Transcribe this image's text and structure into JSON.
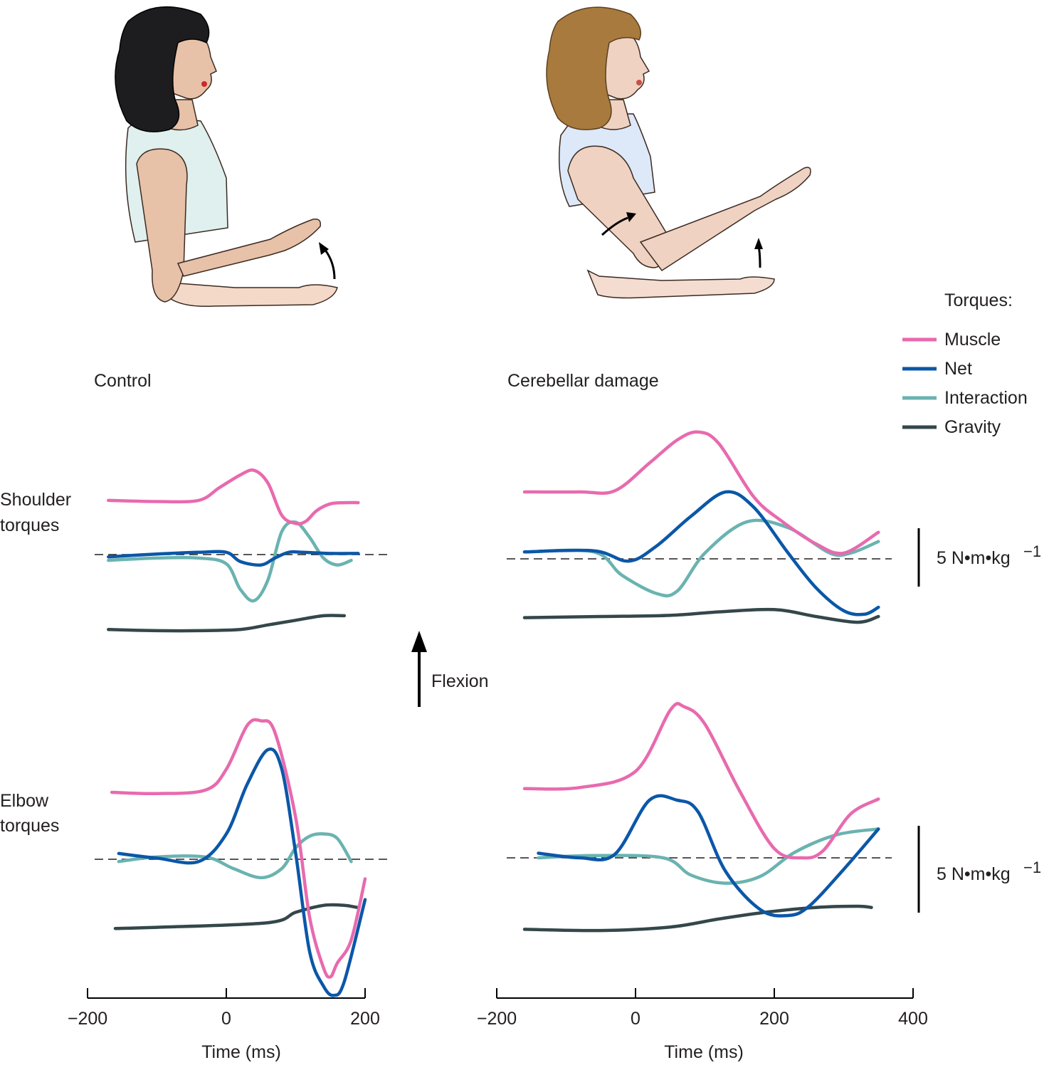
{
  "legend": {
    "title": "Torques:",
    "items": [
      {
        "label": "Muscle",
        "color": "#e86aae"
      },
      {
        "label": "Net",
        "color": "#0b57a8"
      },
      {
        "label": "Interaction",
        "color": "#6ab3b0"
      },
      {
        "label": "Gravity",
        "color": "#34474a"
      }
    ]
  },
  "panels": {
    "control_title": "Control",
    "cerebellar_title": "Cerebellar damage",
    "shoulder_row_label": [
      "Shoulder",
      "torques"
    ],
    "elbow_row_label": [
      "Elbow",
      "torques"
    ],
    "flexion_label": "Flexion",
    "scale_bar_label": "5 N•m•kg",
    "scale_bar_exponent": "−1"
  },
  "illustrations": {
    "control_person": {
      "hair": "black",
      "shirt": "pale-teal",
      "motion": "elbow-flexion"
    },
    "cerebellar_person": {
      "hair": "brown",
      "shirt": "pale-blue",
      "motion": "shoulder-and-elbow-flexion"
    }
  },
  "chart_data": [
    {
      "type": "line",
      "title": "Control",
      "row": "Shoulder torques",
      "xlabel": "Time (ms)",
      "xlim": [
        -200,
        200
      ],
      "scale": "5 N•m•kg −1",
      "series": [
        {
          "name": "Muscle",
          "x": [
            -170,
            -100,
            -40,
            -10,
            20,
            40,
            60,
            80,
            100,
            115,
            130,
            150,
            170,
            190
          ],
          "y": [
            4.7,
            4.6,
            4.7,
            5.8,
            6.9,
            7.3,
            6.2,
            3.4,
            2.7,
            2.9,
            3.8,
            4.4,
            4.5,
            4.5
          ]
        },
        {
          "name": "Net",
          "x": [
            -170,
            -100,
            -40,
            0,
            20,
            50,
            70,
            90,
            110,
            150,
            190
          ],
          "y": [
            -0.2,
            0.05,
            0.2,
            0.2,
            -0.6,
            -0.9,
            -0.3,
            0.2,
            0.2,
            0.1,
            0.1
          ]
        },
        {
          "name": "Interaction",
          "x": [
            -170,
            -100,
            -40,
            0,
            20,
            40,
            60,
            80,
            100,
            120,
            140,
            160,
            180
          ],
          "y": [
            -0.5,
            -0.3,
            -0.3,
            -0.8,
            -3.0,
            -4.0,
            -2.2,
            2.0,
            2.8,
            1.5,
            -0.3,
            -0.9,
            -0.5
          ]
        },
        {
          "name": "Gravity",
          "x": [
            -170,
            -100,
            -40,
            20,
            60,
            100,
            140,
            170
          ],
          "y": [
            -6.5,
            -6.6,
            -6.6,
            -6.5,
            -6.1,
            -5.7,
            -5.3,
            -5.3
          ]
        }
      ]
    },
    {
      "type": "line",
      "title": "Cerebellar damage",
      "row": "Shoulder torques",
      "xlabel": "Time (ms)",
      "xlim": [
        -200,
        400
      ],
      "scale": "5 N•m•kg −1",
      "series": [
        {
          "name": "Muscle",
          "x": [
            -160,
            -80,
            -30,
            20,
            60,
            90,
            120,
            170,
            210,
            260,
            300,
            350
          ],
          "y": [
            5.8,
            5.8,
            5.9,
            8.3,
            10.3,
            11.0,
            10.0,
            5.4,
            3.3,
            1.3,
            0.5,
            2.3
          ]
        },
        {
          "name": "Net",
          "x": [
            -160,
            -60,
            -10,
            30,
            80,
            130,
            170,
            220,
            260,
            300,
            330,
            350
          ],
          "y": [
            0.6,
            0.7,
            -0.2,
            1.1,
            3.7,
            5.8,
            4.5,
            0.5,
            -2.5,
            -4.5,
            -4.8,
            -4.2
          ]
        },
        {
          "name": "Interaction",
          "x": [
            -160,
            -60,
            -20,
            30,
            60,
            100,
            160,
            220,
            280,
            310,
            350
          ],
          "y": [
            0.6,
            0.6,
            -1.4,
            -3.0,
            -2.8,
            0.5,
            3.2,
            2.7,
            0.5,
            0.5,
            1.5
          ]
        },
        {
          "name": "Gravity",
          "x": [
            -160,
            -50,
            50,
            120,
            200,
            260,
            320,
            350
          ],
          "y": [
            -5.1,
            -5.0,
            -4.9,
            -4.6,
            -4.4,
            -5.0,
            -5.5,
            -5.0
          ]
        }
      ]
    },
    {
      "type": "line",
      "title": "Control",
      "row": "Elbow torques",
      "xlabel": "Time (ms)",
      "xlim": [
        -200,
        200
      ],
      "x_ticks": [
        -200,
        0,
        200
      ],
      "scale": "5 N•m•kg −1",
      "series": [
        {
          "name": "Muscle",
          "x": [
            -165,
            -100,
            -30,
            0,
            30,
            50,
            70,
            100,
            120,
            140,
            150,
            160,
            180,
            200
          ],
          "y": [
            5.8,
            5.7,
            6.0,
            7.8,
            11.6,
            12.0,
            11.0,
            3.6,
            -5.0,
            -9.4,
            -10.2,
            -9.0,
            -7.0,
            -1.7
          ]
        },
        {
          "name": "Net",
          "x": [
            -155,
            -100,
            -40,
            0,
            30,
            60,
            80,
            100,
            120,
            140,
            155,
            170,
            200
          ],
          "y": [
            0.5,
            0.1,
            -0.2,
            2.2,
            6.5,
            9.5,
            7.8,
            0.5,
            -8.0,
            -11.0,
            -11.8,
            -10.6,
            -3.5
          ]
        },
        {
          "name": "Interaction",
          "x": [
            -155,
            -100,
            -30,
            10,
            50,
            80,
            100,
            120,
            140,
            160,
            180
          ],
          "y": [
            -0.2,
            0.2,
            0.2,
            -0.8,
            -1.6,
            -0.8,
            1.0,
            2.0,
            2.2,
            1.8,
            -0.2
          ]
        },
        {
          "name": "Gravity",
          "x": [
            -160,
            -100,
            60,
            100,
            140,
            170,
            190
          ],
          "y": [
            -6.0,
            -5.9,
            -5.5,
            -4.6,
            -4.0,
            -4.0,
            -4.2
          ]
        }
      ]
    },
    {
      "type": "line",
      "title": "Cerebellar damage",
      "row": "Elbow torques",
      "xlabel": "Time (ms)",
      "xlim": [
        -200,
        400
      ],
      "x_ticks": [
        -200,
        0,
        200,
        400
      ],
      "scale": "5 N•m•kg −1",
      "series": [
        {
          "name": "Muscle",
          "x": [
            -160,
            -80,
            0,
            50,
            70,
            100,
            150,
            200,
            240,
            270,
            310,
            350
          ],
          "y": [
            6.0,
            6.1,
            7.5,
            12.8,
            13.1,
            11.6,
            5.8,
            0.8,
            0.0,
            0.6,
            3.8,
            5.1
          ]
        },
        {
          "name": "Net",
          "x": [
            -140,
            -80,
            -30,
            20,
            60,
            90,
            130,
            180,
            220,
            250,
            300,
            350
          ],
          "y": [
            0.4,
            0.0,
            0.3,
            5.0,
            5.0,
            4.0,
            -1.2,
            -4.5,
            -5.0,
            -4.2,
            -1.0,
            2.5
          ]
        },
        {
          "name": "Interaction",
          "x": [
            -140,
            -60,
            40,
            80,
            130,
            180,
            230,
            290,
            350
          ],
          "y": [
            0.0,
            0.2,
            0.0,
            -1.5,
            -2.2,
            -1.6,
            0.5,
            2.0,
            2.5
          ]
        },
        {
          "name": "Gravity",
          "x": [
            -160,
            -50,
            50,
            120,
            190,
            260,
            320,
            340
          ],
          "y": [
            -6.2,
            -6.3,
            -6.0,
            -5.3,
            -4.7,
            -4.3,
            -4.2,
            -4.3
          ]
        }
      ]
    }
  ]
}
